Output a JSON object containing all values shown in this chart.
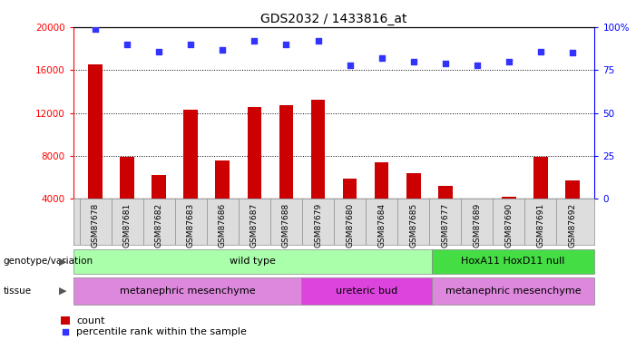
{
  "title": "GDS2032 / 1433816_at",
  "samples": [
    "GSM87678",
    "GSM87681",
    "GSM87682",
    "GSM87683",
    "GSM87686",
    "GSM87687",
    "GSM87688",
    "GSM87679",
    "GSM87680",
    "GSM87684",
    "GSM87685",
    "GSM87677",
    "GSM87689",
    "GSM87690",
    "GSM87691",
    "GSM87692"
  ],
  "counts": [
    16500,
    7900,
    6200,
    12300,
    7600,
    12600,
    12700,
    13200,
    5900,
    7400,
    6400,
    5200,
    3600,
    4200,
    7900,
    5700
  ],
  "percentiles": [
    99,
    90,
    86,
    90,
    87,
    92,
    90,
    92,
    78,
    82,
    80,
    79,
    78,
    80,
    86,
    85
  ],
  "bar_color": "#cc0000",
  "dot_color": "#3333ff",
  "ymin": 4000,
  "ymax": 20000,
  "yticks": [
    4000,
    8000,
    12000,
    16000,
    20000
  ],
  "y2ticks": [
    0,
    25,
    50,
    75,
    100
  ],
  "y2tick_labels": [
    "0",
    "25",
    "50",
    "75",
    "100%"
  ],
  "genotype_groups": [
    {
      "label": "wild type",
      "start": 0,
      "end": 11,
      "color": "#aaffaa"
    },
    {
      "label": "HoxA11 HoxD11 null",
      "start": 11,
      "end": 16,
      "color": "#44dd44"
    }
  ],
  "tissue_groups": [
    {
      "label": "metanephric mesenchyme",
      "start": 0,
      "end": 7,
      "color": "#dd88dd"
    },
    {
      "label": "ureteric bud",
      "start": 7,
      "end": 11,
      "color": "#dd44dd"
    },
    {
      "label": "metanephric mesenchyme",
      "start": 11,
      "end": 16,
      "color": "#dd88dd"
    }
  ],
  "background_color": "#ffffff",
  "genotype_label": "genotype/variation",
  "tissue_label": "tissue",
  "legend_count_label": "count",
  "legend_percentile_label": "percentile rank within the sample"
}
